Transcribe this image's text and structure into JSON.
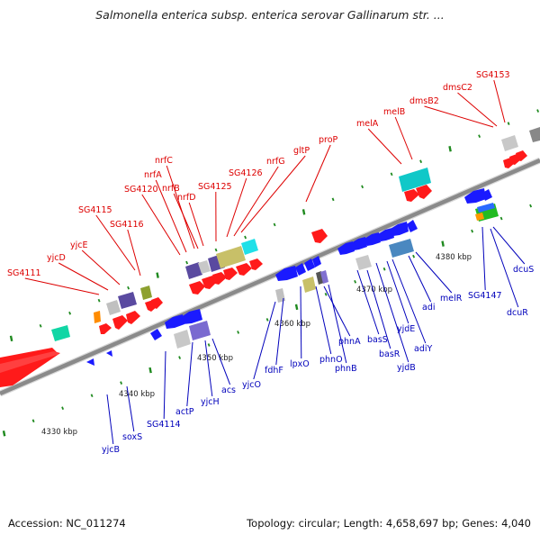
{
  "title": "Salmonella enterica subsp. enterica serovar Gallinarum str. ...",
  "footer": {
    "accession": "Accession: NC_011274",
    "summary": "Topology: circular; Length: 4,658,697 bp; Genes: 4,040"
  },
  "colors": {
    "forward_label": "#dd0000",
    "reverse_label": "#0000bb",
    "forward_gene": "#ff1a1a",
    "reverse_gene": "#1a1aff",
    "backbone": "#8a8a8a",
    "tick": "#1f8a1f"
  },
  "ticks": [
    {
      "label": "4330 kbp"
    },
    {
      "label": "4340 kbp"
    },
    {
      "label": "4350 kbp"
    },
    {
      "label": "4360 kbp"
    },
    {
      "label": "4370 kbp"
    },
    {
      "label": "4380 kbp"
    }
  ],
  "forward_labels": [
    "SG4111",
    "yjcD",
    "yjcE",
    "SG4115",
    "SG4116",
    "SG4120",
    "nrfA",
    "nrfC",
    "nrfB",
    "nrfD",
    "SG4125",
    "SG4126",
    "nrfG",
    "gltP",
    "proP",
    "melA",
    "melB",
    "dmsB2",
    "dmsC2",
    "SG4153"
  ],
  "reverse_labels": [
    "yjcB",
    "soxS",
    "SG4114",
    "actP",
    "yjcH",
    "acs",
    "yjcO",
    "fdhF",
    "lpxO",
    "phnO",
    "phnA",
    "phnB",
    "basS",
    "basR",
    "yjdB",
    "yjdE",
    "adiY",
    "adi",
    "melR",
    "SG4147",
    "dcuR",
    "dcuS"
  ]
}
